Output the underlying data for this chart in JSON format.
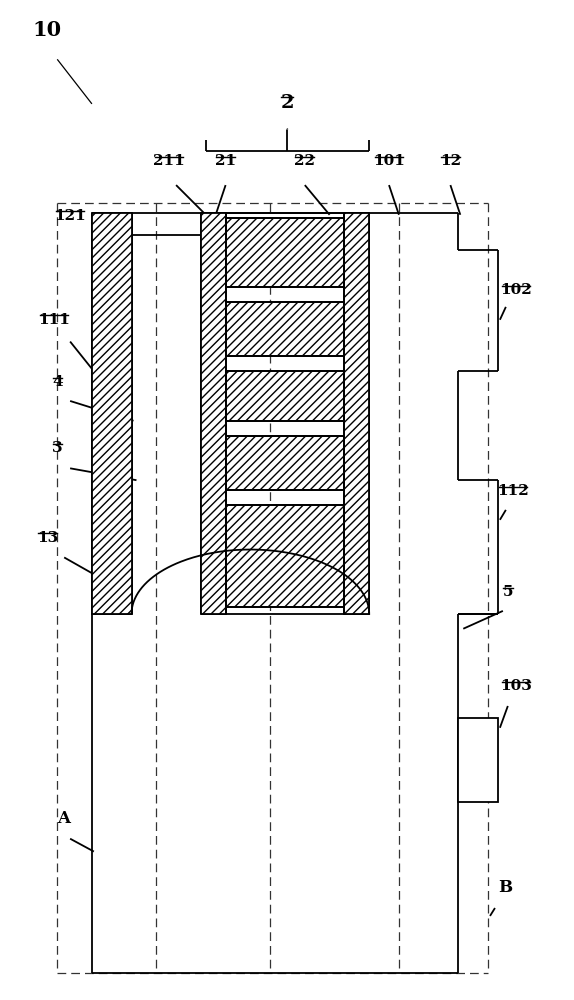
{
  "bg_color": "#ffffff",
  "line_color": "#000000",
  "fig_width": 5.74,
  "fig_height": 10.0,
  "dpi": 100
}
